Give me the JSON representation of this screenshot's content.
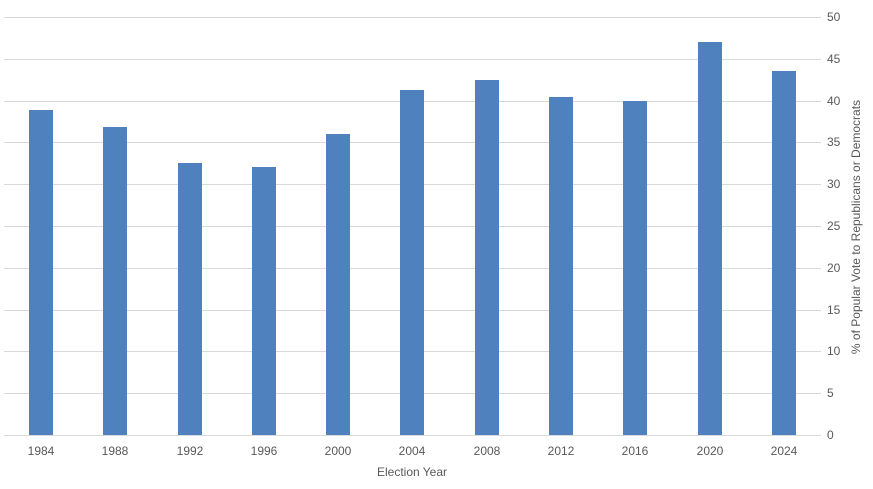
{
  "chart_data": {
    "type": "bar",
    "title": "",
    "xlabel": "Election Year",
    "ylabel": "% of Popular Vote to Republicans or Democrats",
    "categories": [
      "1984",
      "1988",
      "1992",
      "1996",
      "2000",
      "2004",
      "2008",
      "2012",
      "2016",
      "2020",
      "2024"
    ],
    "values": [
      38.9,
      36.9,
      32.5,
      32.0,
      36.0,
      41.3,
      42.5,
      40.4,
      40.0,
      47.0,
      43.5
    ],
    "ylim": [
      0,
      50
    ],
    "ytick_step": 5,
    "yticks": [
      0,
      5,
      10,
      15,
      20,
      25,
      30,
      35,
      40,
      45,
      50
    ],
    "grid": true,
    "legend_position": "none",
    "y_axis_side": "right",
    "bar_color": "#4E81BD",
    "gridline_color": "#D9D9D9",
    "tick_label_color": "#595959",
    "axis_title_color": "#595959",
    "background_color": "#FFFFFF"
  }
}
